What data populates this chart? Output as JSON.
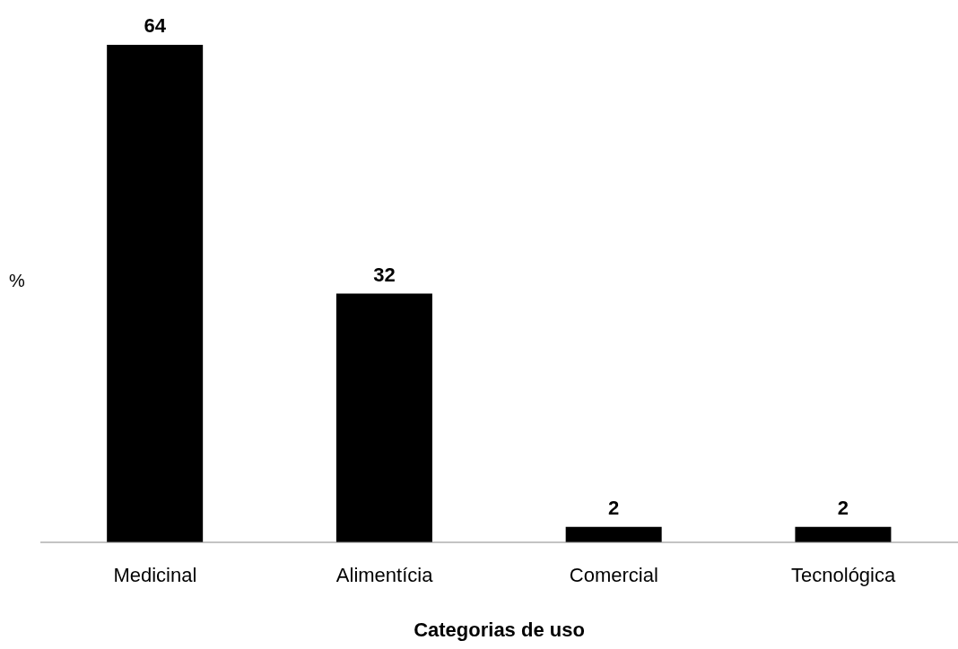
{
  "chart_data": {
    "type": "bar",
    "xlabel": "Categorias de uso",
    "ylabel": "%",
    "categories": [
      "Medicinal",
      "Alimentícia",
      "Comercial",
      "Tecnológica"
    ],
    "values": [
      64,
      32,
      2,
      2
    ],
    "color": "#000000",
    "data_labels": true,
    "grid": false,
    "legend": false
  }
}
